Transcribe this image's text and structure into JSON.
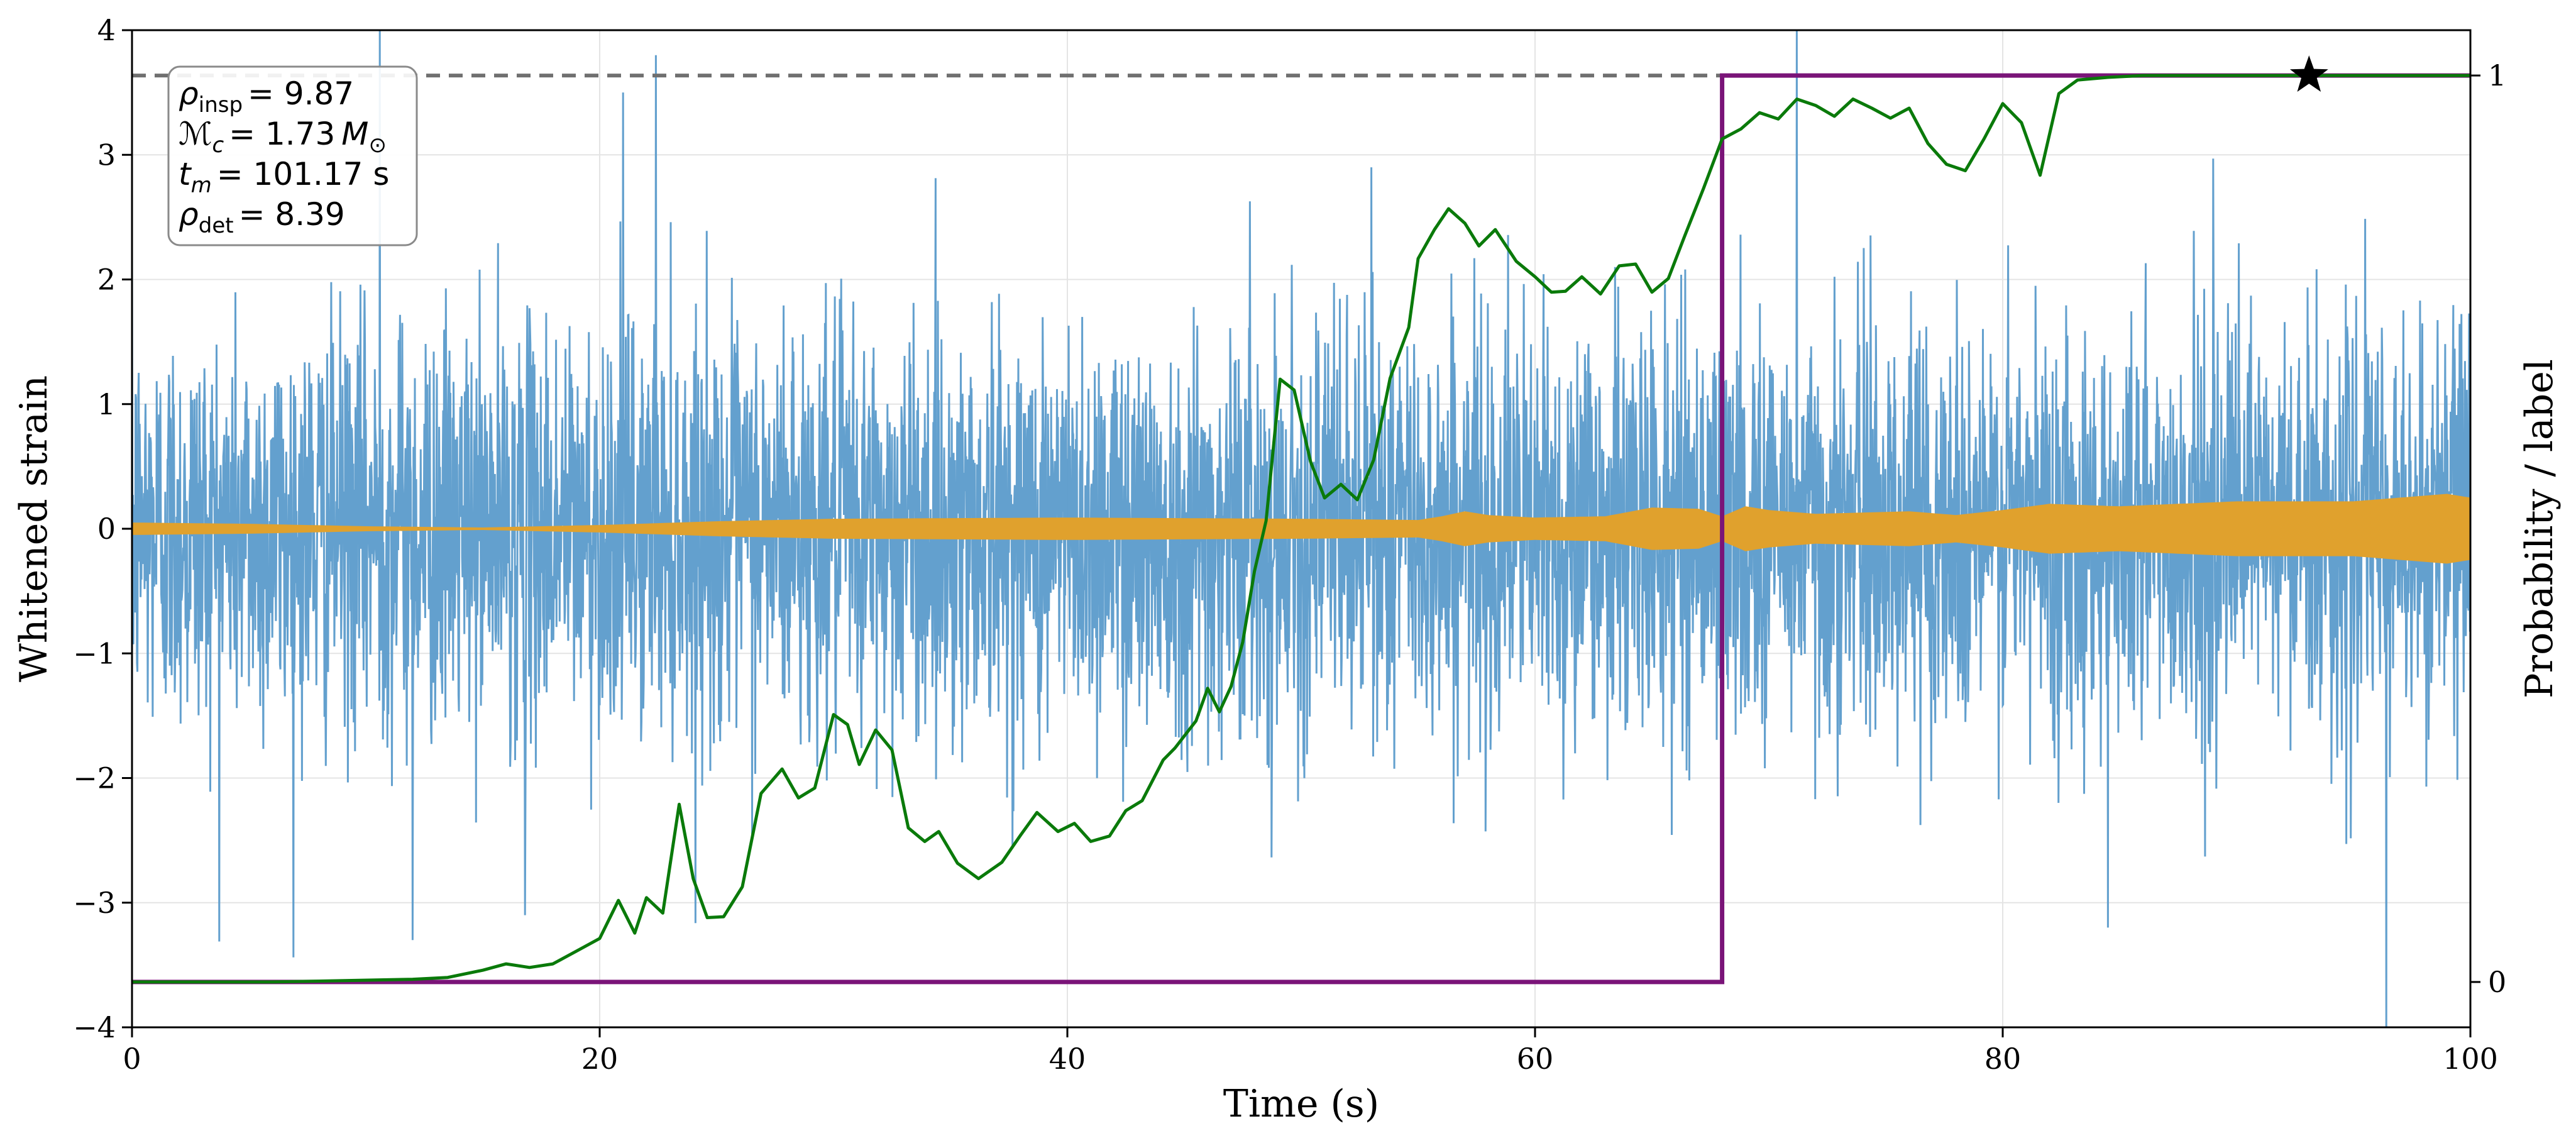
{
  "chart_data": {
    "type": "line",
    "title": "",
    "xlabel": "Time (s)",
    "ylabel": "Whitened strain",
    "ylabel_right": "Probability / label",
    "xlim": [
      0,
      100
    ],
    "ylim": [
      -4,
      4
    ],
    "ylim_right": [
      -0.05,
      1.05
    ],
    "x_ticks": [
      0,
      20,
      40,
      60,
      80,
      100
    ],
    "y_ticks": [
      -4,
      -3,
      -2,
      -1,
      0,
      1,
      2,
      3,
      4
    ],
    "y_ticks_right": [
      0,
      1
    ],
    "x_tick_labels": [
      "0",
      "20",
      "40",
      "60",
      "80",
      "100"
    ],
    "y_tick_labels": [
      "−4",
      "−3",
      "−2",
      "−1",
      "0",
      "1",
      "2",
      "3",
      "4"
    ],
    "y_tick_labels_right": [
      "0",
      "1"
    ],
    "grid": true,
    "colors": {
      "strain": "#5b9bcb",
      "template": "#e0a12d",
      "probability": "#0a7a0a",
      "label": "#7a1478",
      "threshold": "#707070",
      "marker": "#000000"
    },
    "annotation": {
      "rho_insp": {
        "symbol": "ρ",
        "sub": "insp",
        "value": "= 9.87"
      },
      "chirp_mass": {
        "symbol": "ℳ",
        "sub": "c",
        "value": "= 1.73",
        "unit": "M",
        "unit_sub": "⊙"
      },
      "merger_time": {
        "symbol": "t",
        "sub": "m",
        "value": "= 101.17 s"
      },
      "rho_det": {
        "symbol": "ρ",
        "sub": "det",
        "value": "= 8.39"
      }
    },
    "series": [
      {
        "name": "whitened strain",
        "axis": "left",
        "kind": "noise",
        "typical_amplitude": 1.7,
        "spike_extremes": [
          {
            "x": 10.6,
            "y": 4.0
          },
          {
            "x": 22.4,
            "y": 3.8
          },
          {
            "x": 21.0,
            "y": 3.5
          },
          {
            "x": 71.2,
            "y": 4.0
          },
          {
            "x": 16.8,
            "y": -3.1
          },
          {
            "x": 12.0,
            "y": -3.3
          },
          {
            "x": 96.4,
            "y": -4.0
          },
          {
            "x": 53.0,
            "y": 2.9
          },
          {
            "x": 84.5,
            "y": -3.2
          }
        ]
      },
      {
        "name": "template envelope",
        "axis": "left",
        "kind": "envelope",
        "x": [
          0,
          5,
          10,
          15,
          20,
          25,
          30,
          40,
          50,
          55,
          56,
          57,
          58,
          60,
          63,
          65,
          67,
          68,
          69,
          70,
          72,
          76,
          78,
          80,
          82,
          85,
          90,
          95,
          99,
          100
        ],
        "amplitude": [
          0.05,
          0.04,
          0.02,
          0.01,
          0.03,
          0.06,
          0.08,
          0.09,
          0.08,
          0.07,
          0.1,
          0.14,
          0.11,
          0.09,
          0.1,
          0.17,
          0.16,
          0.1,
          0.18,
          0.15,
          0.12,
          0.14,
          0.11,
          0.15,
          0.2,
          0.18,
          0.22,
          0.22,
          0.28,
          0.25
        ]
      },
      {
        "name": "network probability",
        "axis": "right",
        "x": [
          0,
          6,
          12,
          13.5,
          15,
          16,
          17,
          18,
          19,
          20,
          20.8,
          21.5,
          22,
          22.7,
          23.4,
          24,
          24.6,
          25.3,
          26.1,
          26.9,
          27.8,
          28.5,
          29.2,
          30,
          30.6,
          31.1,
          31.8,
          32.5,
          33.2,
          33.9,
          34.5,
          35.3,
          36.2,
          37.2,
          38,
          38.7,
          39.6,
          40.3,
          41,
          41.8,
          42.5,
          43.2,
          44.1,
          44.6,
          45.5,
          46,
          46.5,
          47,
          47.5,
          48,
          48.5,
          49.1,
          49.7,
          50.4,
          51,
          51.7,
          52.4,
          53.1,
          53.8,
          54.6,
          55,
          55.7,
          56.3,
          57,
          57.6,
          58.3,
          59.2,
          60,
          60.7,
          61.3,
          62,
          62.8,
          63.6,
          64.3,
          65,
          65.7,
          66.4,
          67.2,
          68,
          68.8,
          69.6,
          70.4,
          71.2,
          72,
          72.8,
          73.6,
          74.4,
          75.2,
          76,
          76.8,
          77.6,
          78.4,
          79.2,
          80,
          80.8,
          81.6,
          82.4,
          83.2,
          84.5,
          86,
          88,
          90,
          95,
          100
        ],
        "y": [
          0,
          0,
          0.003,
          0.005,
          0.013,
          0.02,
          0.016,
          0.02,
          0.034,
          0.048,
          0.09,
          0.054,
          0.093,
          0.076,
          0.196,
          0.114,
          0.071,
          0.072,
          0.105,
          0.208,
          0.235,
          0.203,
          0.214,
          0.295,
          0.284,
          0.24,
          0.278,
          0.256,
          0.17,
          0.155,
          0.166,
          0.131,
          0.114,
          0.132,
          0.162,
          0.187,
          0.166,
          0.175,
          0.155,
          0.161,
          0.189,
          0.2,
          0.245,
          0.258,
          0.288,
          0.324,
          0.298,
          0.326,
          0.375,
          0.453,
          0.509,
          0.665,
          0.653,
          0.574,
          0.534,
          0.549,
          0.532,
          0.576,
          0.666,
          0.722,
          0.798,
          0.83,
          0.853,
          0.837,
          0.812,
          0.83,
          0.795,
          0.778,
          0.761,
          0.762,
          0.778,
          0.759,
          0.79,
          0.792,
          0.761,
          0.776,
          0.823,
          0.875,
          0.93,
          0.941,
          0.959,
          0.952,
          0.974,
          0.967,
          0.955,
          0.974,
          0.964,
          0.953,
          0.964,
          0.925,
          0.902,
          0.895,
          0.93,
          0.969,
          0.948,
          0.89,
          0.98,
          0.995,
          0.998,
          1.0,
          1.0,
          1.0,
          1.0,
          1.0
        ],
        "note": "approximate reconstruction of plotted curve; values not labeled"
      },
      {
        "name": "injection label",
        "axis": "right",
        "kind": "step",
        "x": [
          0,
          68,
          68,
          100
        ],
        "y": [
          0,
          0,
          1,
          1
        ]
      },
      {
        "name": "detection threshold",
        "axis": "right",
        "kind": "hline",
        "y": 1.0
      },
      {
        "name": "detection marker",
        "axis": "right",
        "kind": "star",
        "x": 93.1,
        "y": 1.0
      }
    ]
  }
}
